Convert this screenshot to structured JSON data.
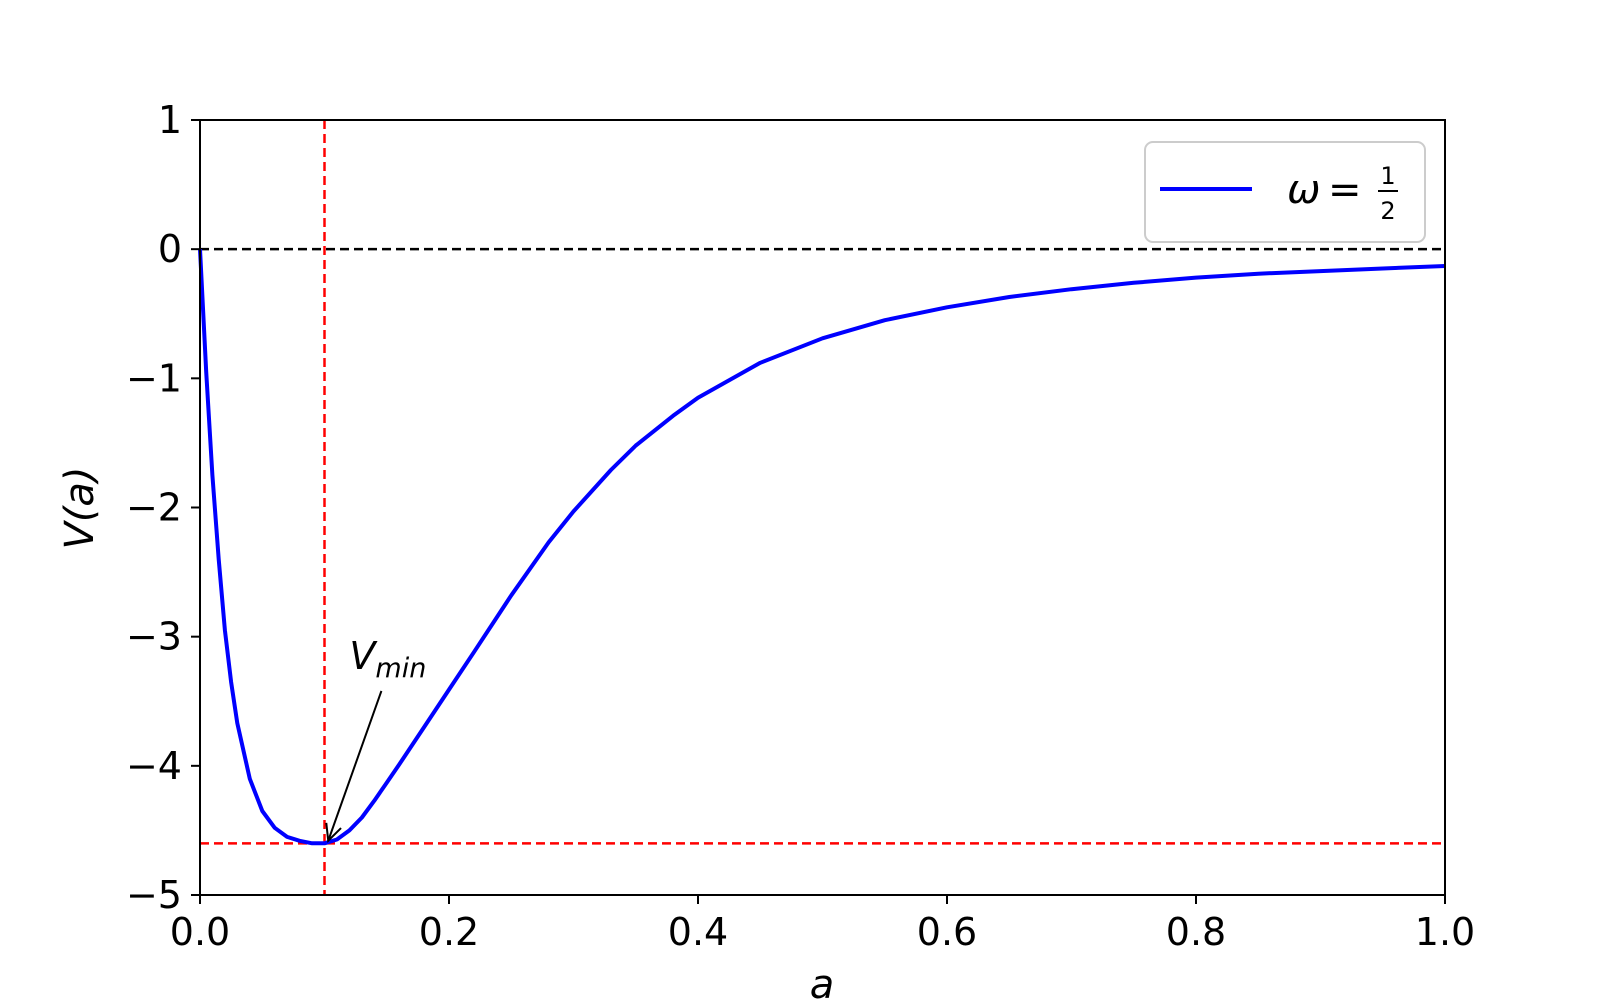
{
  "chart_data": {
    "type": "line",
    "title": "",
    "xlabel": "a",
    "ylabel": "V(a)",
    "xlim": [
      0.0,
      1.0
    ],
    "ylim": [
      -5,
      1
    ],
    "xticks": [
      0.0,
      0.2,
      0.4,
      0.6,
      0.8,
      1.0
    ],
    "xtick_labels": [
      "0.0",
      "0.2",
      "0.4",
      "0.6",
      "0.8",
      "1.0"
    ],
    "yticks": [
      1,
      0,
      -1,
      -2,
      -3,
      -4,
      -5
    ],
    "ytick_labels": [
      "1",
      "0",
      "−1",
      "−2",
      "−3",
      "−4",
      "−5"
    ],
    "grid": false,
    "legend_position": "top-right",
    "series": [
      {
        "name": "ω = 1/2",
        "legend_symbol": "ω",
        "legend_equals": "=",
        "legend_numerator": "1",
        "legend_denominator": "2",
        "color": "#0000ff",
        "x": [
          0.0,
          0.005,
          0.01,
          0.015,
          0.02,
          0.025,
          0.03,
          0.04,
          0.05,
          0.06,
          0.07,
          0.08,
          0.09,
          0.1,
          0.11,
          0.12,
          0.13,
          0.14,
          0.15,
          0.16,
          0.18,
          0.2,
          0.22,
          0.25,
          0.28,
          0.3,
          0.33,
          0.35,
          0.38,
          0.4,
          0.45,
          0.5,
          0.55,
          0.6,
          0.65,
          0.7,
          0.75,
          0.8,
          0.85,
          0.9,
          0.95,
          1.0
        ],
        "y": [
          0.0,
          -0.95,
          -1.75,
          -2.4,
          -2.95,
          -3.35,
          -3.67,
          -4.1,
          -4.35,
          -4.48,
          -4.55,
          -4.58,
          -4.6,
          -4.6,
          -4.57,
          -4.5,
          -4.4,
          -4.27,
          -4.13,
          -3.99,
          -3.7,
          -3.41,
          -3.12,
          -2.68,
          -2.27,
          -2.03,
          -1.71,
          -1.52,
          -1.29,
          -1.15,
          -0.88,
          -0.69,
          -0.55,
          -0.45,
          -0.37,
          -0.31,
          -0.26,
          -0.22,
          -0.19,
          -0.17,
          -0.15,
          -0.13
        ]
      }
    ],
    "reference_lines": [
      {
        "orientation": "horizontal",
        "value": 0,
        "color": "#000000",
        "style": "dashed"
      },
      {
        "orientation": "vertical",
        "value": 0.1,
        "color": "#ff0000",
        "style": "dashed"
      },
      {
        "orientation": "horizontal",
        "value": -4.6,
        "color": "#ff0000",
        "style": "dashed"
      }
    ],
    "annotation": {
      "text_main": "V",
      "text_sub": "min",
      "text_at": [
        0.12,
        -3.25
      ],
      "arrow_to": [
        0.103,
        -4.58
      ]
    }
  }
}
